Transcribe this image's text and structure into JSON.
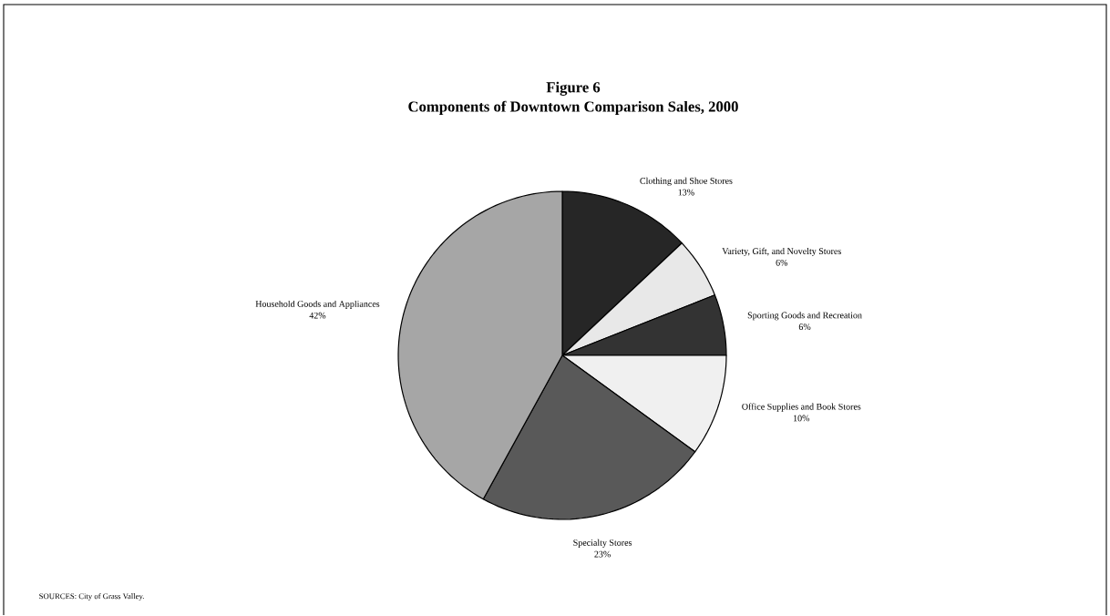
{
  "chart_data": {
    "type": "pie",
    "title": "Figure 6",
    "subtitle": "Components of Downtown Comparison Sales, 2000",
    "categories": [
      "Clothing and Shoe Stores",
      "Variety, Gift, and Novelty Stores",
      "Sporting Goods and Recreation",
      "Office Supplies and Book Stores",
      "Specialty Stores",
      "Household Goods and Appliances"
    ],
    "values": [
      13,
      6,
      6,
      10,
      23,
      42
    ],
    "value_labels": [
      "13%",
      "6%",
      "6%",
      "10%",
      "23%",
      "42%"
    ],
    "colors": [
      "#262626",
      "#e8e8e8",
      "#333333",
      "#f0f0f0",
      "#595959",
      "#a6a6a6"
    ],
    "annotations": [
      "SOURCES: City of Grass Valley."
    ]
  }
}
